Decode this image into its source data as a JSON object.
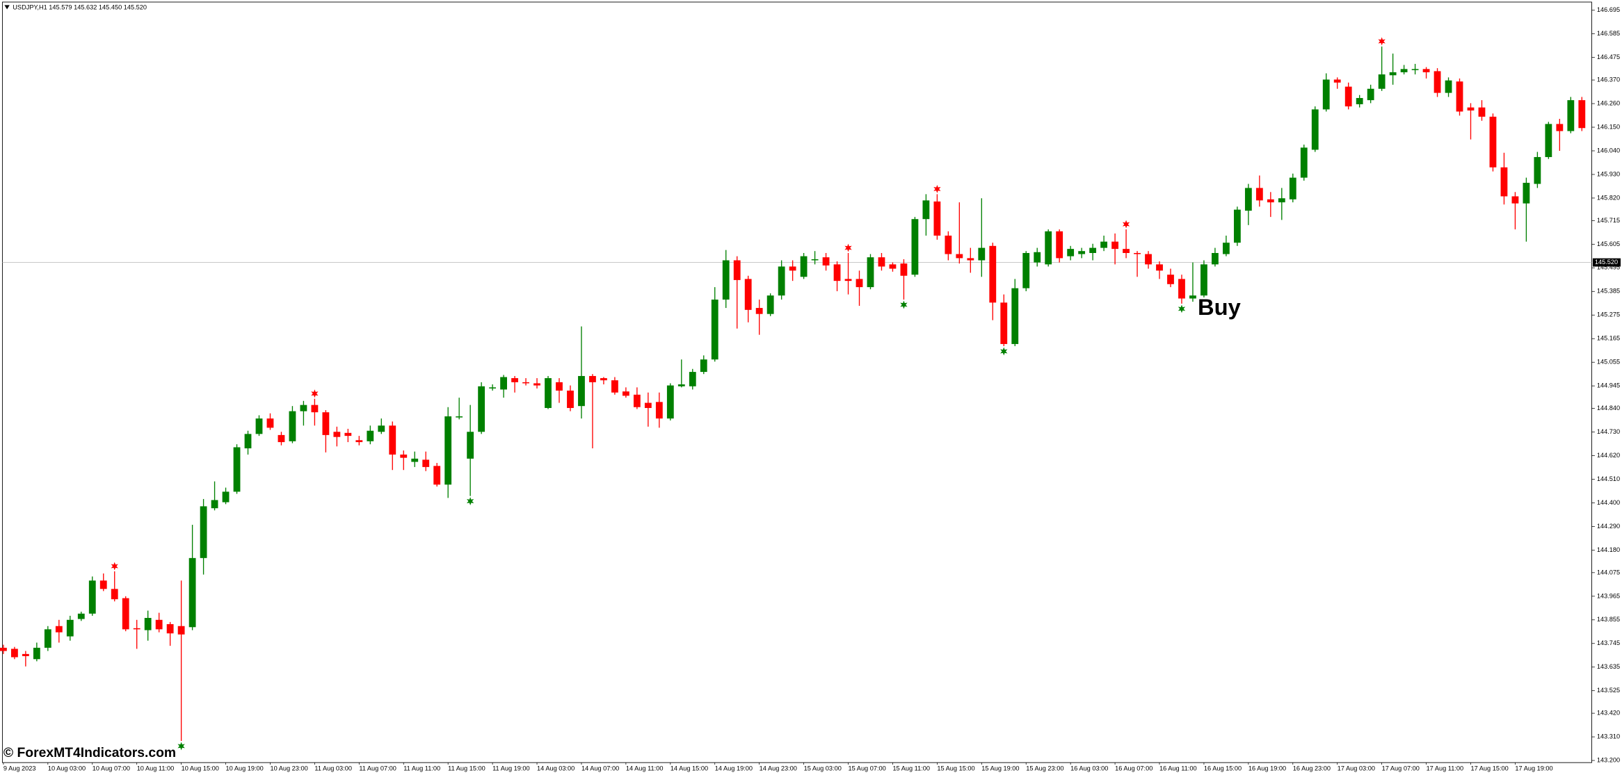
{
  "chart_data": {
    "type": "candlestick",
    "header": "USDJPY,H1  145.579 145.632 145.450 145.520",
    "annotation": "Buy",
    "watermark": "© ForexMT4Indicators.com",
    "up_color": "#008000",
    "down_color": "#ff0000",
    "buy_color": "#008000",
    "sell_color": "#ff0000",
    "grid": false,
    "categories": [
      "9 Aug 2023",
      null,
      null,
      null,
      "10 Aug 03:00",
      null,
      null,
      null,
      "10 Aug 07:00",
      null,
      null,
      null,
      "10 Aug 11:00",
      null,
      null,
      null,
      "10 Aug 15:00",
      null,
      null,
      null,
      "10 Aug 19:00",
      null,
      null,
      null,
      "10 Aug 23:00",
      null,
      null,
      null,
      "11 Aug 03:00",
      null,
      null,
      null,
      "11 Aug 07:00",
      null,
      null,
      null,
      "11 Aug 11:00",
      null,
      null,
      null,
      "11 Aug 15:00",
      null,
      null,
      null,
      "11 Aug 19:00",
      null,
      null,
      null,
      "14 Aug 03:00",
      null,
      null,
      null,
      "14 Aug 07:00",
      null,
      null,
      null,
      "14 Aug 11:00",
      null,
      null,
      null,
      "14 Aug 15:00",
      null,
      null,
      null,
      "14 Aug 19:00",
      null,
      null,
      null,
      "14 Aug 23:00",
      null,
      null,
      null,
      "15 Aug 03:00",
      null,
      null,
      null,
      "15 Aug 07:00",
      null,
      null,
      null,
      "15 Aug 11:00",
      null,
      null,
      null,
      "15 Aug 15:00",
      null,
      null,
      null,
      "15 Aug 19:00",
      null,
      null,
      null,
      "15 Aug 23:00",
      null,
      null,
      null,
      "16 Aug 03:00",
      null,
      null,
      null,
      "16 Aug 07:00",
      null,
      null,
      null,
      "16 Aug 11:00",
      null,
      null,
      null,
      "16 Aug 15:00",
      null,
      null,
      null,
      "16 Aug 19:00",
      null,
      null,
      null,
      "16 Aug 23:00",
      null,
      null,
      null,
      "17 Aug 03:00",
      null,
      null,
      null,
      "17 Aug 07:00",
      null,
      null,
      null,
      "17 Aug 11:00",
      null,
      null,
      null,
      "17 Aug 15:00",
      null,
      null,
      null,
      "17 Aug 19:00",
      null,
      null,
      null,
      null,
      null,
      null
    ],
    "open": [
      143.725,
      143.72,
      143.696,
      143.672,
      143.725,
      143.826,
      143.778,
      143.859,
      143.884,
      144.038,
      143.999,
      143.956,
      143.816,
      143.807,
      143.855,
      143.835,
      143.826,
      143.821,
      144.143,
      144.375,
      144.403,
      144.452,
      144.654,
      144.721,
      144.793,
      144.716,
      144.687,
      144.827,
      144.856,
      144.822,
      144.731,
      144.726,
      144.692,
      144.687,
      144.731,
      144.76,
      144.625,
      144.591,
      144.601,
      144.572,
      144.485,
      144.798,
      144.606,
      144.731,
      144.933,
      144.928,
      144.981,
      144.962,
      144.957,
      144.842,
      144.962,
      144.923,
      144.851,
      144.991,
      144.981,
      144.971,
      144.919,
      144.904,
      144.866,
      144.87,
      144.793,
      144.943,
      144.943,
      145.01,
      145.068,
      145.347,
      145.53,
      145.443,
      145.308,
      145.28,
      145.366,
      145.501,
      145.453,
      145.53,
      145.544,
      145.511,
      145.443,
      145.443,
      145.405,
      145.544,
      145.511,
      145.515,
      145.463,
      145.722,
      145.804,
      145.645,
      145.559,
      145.54,
      145.53,
      145.597,
      145.333,
      145.14,
      145.4,
      145.52,
      145.511,
      145.665,
      145.549,
      145.559,
      145.564,
      145.588,
      145.617,
      145.583,
      145.564,
      145.559,
      145.511,
      145.463,
      145.443,
      145.352,
      145.366,
      145.511,
      145.559,
      145.612,
      145.761,
      145.867,
      145.814,
      145.8,
      145.814,
      145.915,
      146.045,
      146.233,
      146.372,
      146.339,
      146.257,
      146.276,
      146.329,
      146.392,
      146.406,
      146.416,
      146.421,
      146.411,
      146.31,
      146.363,
      146.242,
      146.242,
      146.199,
      145.963,
      145.828,
      145.795,
      145.886,
      146.011,
      146.165,
      146.132,
      146.276
    ],
    "high": [
      143.739,
      143.729,
      143.71,
      143.749,
      143.826,
      143.855,
      143.874,
      143.893,
      144.057,
      144.071,
      144.081,
      143.965,
      143.855,
      143.898,
      143.888,
      143.845,
      144.038,
      144.298,
      144.418,
      144.5,
      144.471,
      144.673,
      144.736,
      144.808,
      144.817,
      144.731,
      144.851,
      144.875,
      144.885,
      144.832,
      144.755,
      144.745,
      144.712,
      144.76,
      144.793,
      144.779,
      144.644,
      144.639,
      144.639,
      144.586,
      144.846,
      144.89,
      144.856,
      144.962,
      144.952,
      144.996,
      144.991,
      144.981,
      144.981,
      144.991,
      144.981,
      144.947,
      145.222,
      145.0,
      144.986,
      144.986,
      144.938,
      144.938,
      144.914,
      144.914,
      144.957,
      145.068,
      145.024,
      145.087,
      145.405,
      145.578,
      145.549,
      145.458,
      145.347,
      145.376,
      145.53,
      145.53,
      145.564,
      145.573,
      145.564,
      145.525,
      145.564,
      145.482,
      145.559,
      145.564,
      145.52,
      145.535,
      145.732,
      145.838,
      145.838,
      145.665,
      145.8,
      145.588,
      145.819,
      145.612,
      145.371,
      145.443,
      145.573,
      145.588,
      145.674,
      145.674,
      145.597,
      145.588,
      145.607,
      145.645,
      145.655,
      145.674,
      145.573,
      145.573,
      145.525,
      145.491,
      145.463,
      145.52,
      145.53,
      145.588,
      145.645,
      145.78,
      145.886,
      145.925,
      145.848,
      145.867,
      145.934,
      146.069,
      146.247,
      146.401,
      146.382,
      146.358,
      146.3,
      146.348,
      146.526,
      146.493,
      146.44,
      146.445,
      146.43,
      146.425,
      146.382,
      146.377,
      146.262,
      146.276,
      146.214,
      146.031,
      145.848,
      145.915,
      146.035,
      146.175,
      146.189,
      146.291,
      146.291
    ],
    "low": [
      143.696,
      143.672,
      143.638,
      143.662,
      143.71,
      143.749,
      143.758,
      143.85,
      143.874,
      143.989,
      143.941,
      143.802,
      143.72,
      143.758,
      143.797,
      143.734,
      143.291,
      143.807,
      144.066,
      144.365,
      144.394,
      144.442,
      144.625,
      144.712,
      144.74,
      144.668,
      144.678,
      144.76,
      144.76,
      144.635,
      144.663,
      144.683,
      144.668,
      144.673,
      144.721,
      144.553,
      144.553,
      144.567,
      144.548,
      144.476,
      144.423,
      144.789,
      144.432,
      144.721,
      144.923,
      144.89,
      144.914,
      144.947,
      144.933,
      144.837,
      144.866,
      144.827,
      144.793,
      144.654,
      144.952,
      144.904,
      144.89,
      144.837,
      144.755,
      144.75,
      144.784,
      144.938,
      144.928,
      145.0,
      145.058,
      145.308,
      145.212,
      145.241,
      145.183,
      145.27,
      145.347,
      145.434,
      145.443,
      145.511,
      145.482,
      145.386,
      145.371,
      145.318,
      145.395,
      145.482,
      145.477,
      145.347,
      145.453,
      145.645,
      145.626,
      145.53,
      145.515,
      145.472,
      145.453,
      145.251,
      145.13,
      145.13,
      145.386,
      145.501,
      145.501,
      145.52,
      145.53,
      145.54,
      145.53,
      145.573,
      145.511,
      145.54,
      145.453,
      145.491,
      145.443,
      145.405,
      145.328,
      145.337,
      145.357,
      145.501,
      145.549,
      145.597,
      145.694,
      145.78,
      145.732,
      145.718,
      145.8,
      145.901,
      146.035,
      146.223,
      146.329,
      146.233,
      146.242,
      146.262,
      146.319,
      146.348,
      146.396,
      146.396,
      146.377,
      146.291,
      146.291,
      146.204,
      146.093,
      146.18,
      145.944,
      145.79,
      145.674,
      145.617,
      145.867,
      146.002,
      146.04,
      146.122,
      146.132
    ],
    "close": [
      143.71,
      143.681,
      143.686,
      143.725,
      143.811,
      143.797,
      143.855,
      143.884,
      144.038,
      143.999,
      143.951,
      143.811,
      143.811,
      143.864,
      143.811,
      143.792,
      143.787,
      144.143,
      144.384,
      144.413,
      144.452,
      144.659,
      144.721,
      144.793,
      144.75,
      144.683,
      144.827,
      144.856,
      144.822,
      144.716,
      144.707,
      144.712,
      144.683,
      144.736,
      144.76,
      144.625,
      144.61,
      144.606,
      144.567,
      144.485,
      144.803,
      144.803,
      144.731,
      144.943,
      144.938,
      144.986,
      144.962,
      144.957,
      144.947,
      144.981,
      144.923,
      144.842,
      144.991,
      144.962,
      144.971,
      144.914,
      144.899,
      144.846,
      144.842,
      144.793,
      144.947,
      144.952,
      145.01,
      145.068,
      145.347,
      145.53,
      145.438,
      145.299,
      145.28,
      145.366,
      145.501,
      145.482,
      145.549,
      145.535,
      145.506,
      145.434,
      145.434,
      145.405,
      145.544,
      145.501,
      145.491,
      145.458,
      145.722,
      145.809,
      145.645,
      145.559,
      145.54,
      145.53,
      145.588,
      145.333,
      145.14,
      145.4,
      145.564,
      145.568,
      145.665,
      145.54,
      145.583,
      145.573,
      145.588,
      145.617,
      145.583,
      145.564,
      145.559,
      145.511,
      145.482,
      145.419,
      145.352,
      145.366,
      145.511,
      145.564,
      145.612,
      145.766,
      145.867,
      145.809,
      145.8,
      145.819,
      145.915,
      146.055,
      146.233,
      146.372,
      146.358,
      146.247,
      146.286,
      146.329,
      146.396,
      146.406,
      146.421,
      146.421,
      146.406,
      146.31,
      146.368,
      146.223,
      146.228,
      146.199,
      145.963,
      145.828,
      145.795,
      145.891,
      146.011,
      146.165,
      146.132,
      146.276,
      146.146
    ],
    "buy_signals": [
      16,
      42,
      81,
      90,
      106
    ],
    "sell_signals": [
      10,
      28,
      76,
      84,
      101,
      124
    ],
    "price_line": {
      "value": 145.52,
      "label": "145.520"
    },
    "ylim": [
      143.19,
      146.733
    ],
    "yticks": [
      146.695,
      146.585,
      146.475,
      {
        "value": 146.37,
        "label": "146.370"
      },
      {
        "value": 146.26,
        "label": "146.260"
      },
      {
        "value": 146.15,
        "label": "146.150"
      },
      {
        "value": 146.04,
        "label": "146.040"
      },
      {
        "value": 145.93,
        "label": "145.930"
      },
      {
        "value": 145.82,
        "label": "145.820"
      },
      145.715,
      145.605,
      145.495,
      145.385,
      145.275,
      145.165,
      145.055,
      144.945,
      {
        "value": 144.84,
        "label": "144.840"
      },
      {
        "value": 144.73,
        "label": "144.730"
      },
      {
        "value": 144.62,
        "label": "144.620"
      },
      {
        "value": 144.51,
        "label": "144.510"
      },
      {
        "value": 144.4,
        "label": "144.400"
      },
      {
        "value": 144.29,
        "label": "144.290"
      },
      {
        "value": 144.18,
        "label": "144.180"
      },
      144.075,
      143.965,
      143.855,
      143.745,
      143.635,
      143.525,
      {
        "value": 143.42,
        "label": "143.420"
      },
      {
        "value": 143.31,
        "label": "143.310"
      },
      {
        "value": 143.2,
        "label": "143.200"
      }
    ]
  }
}
